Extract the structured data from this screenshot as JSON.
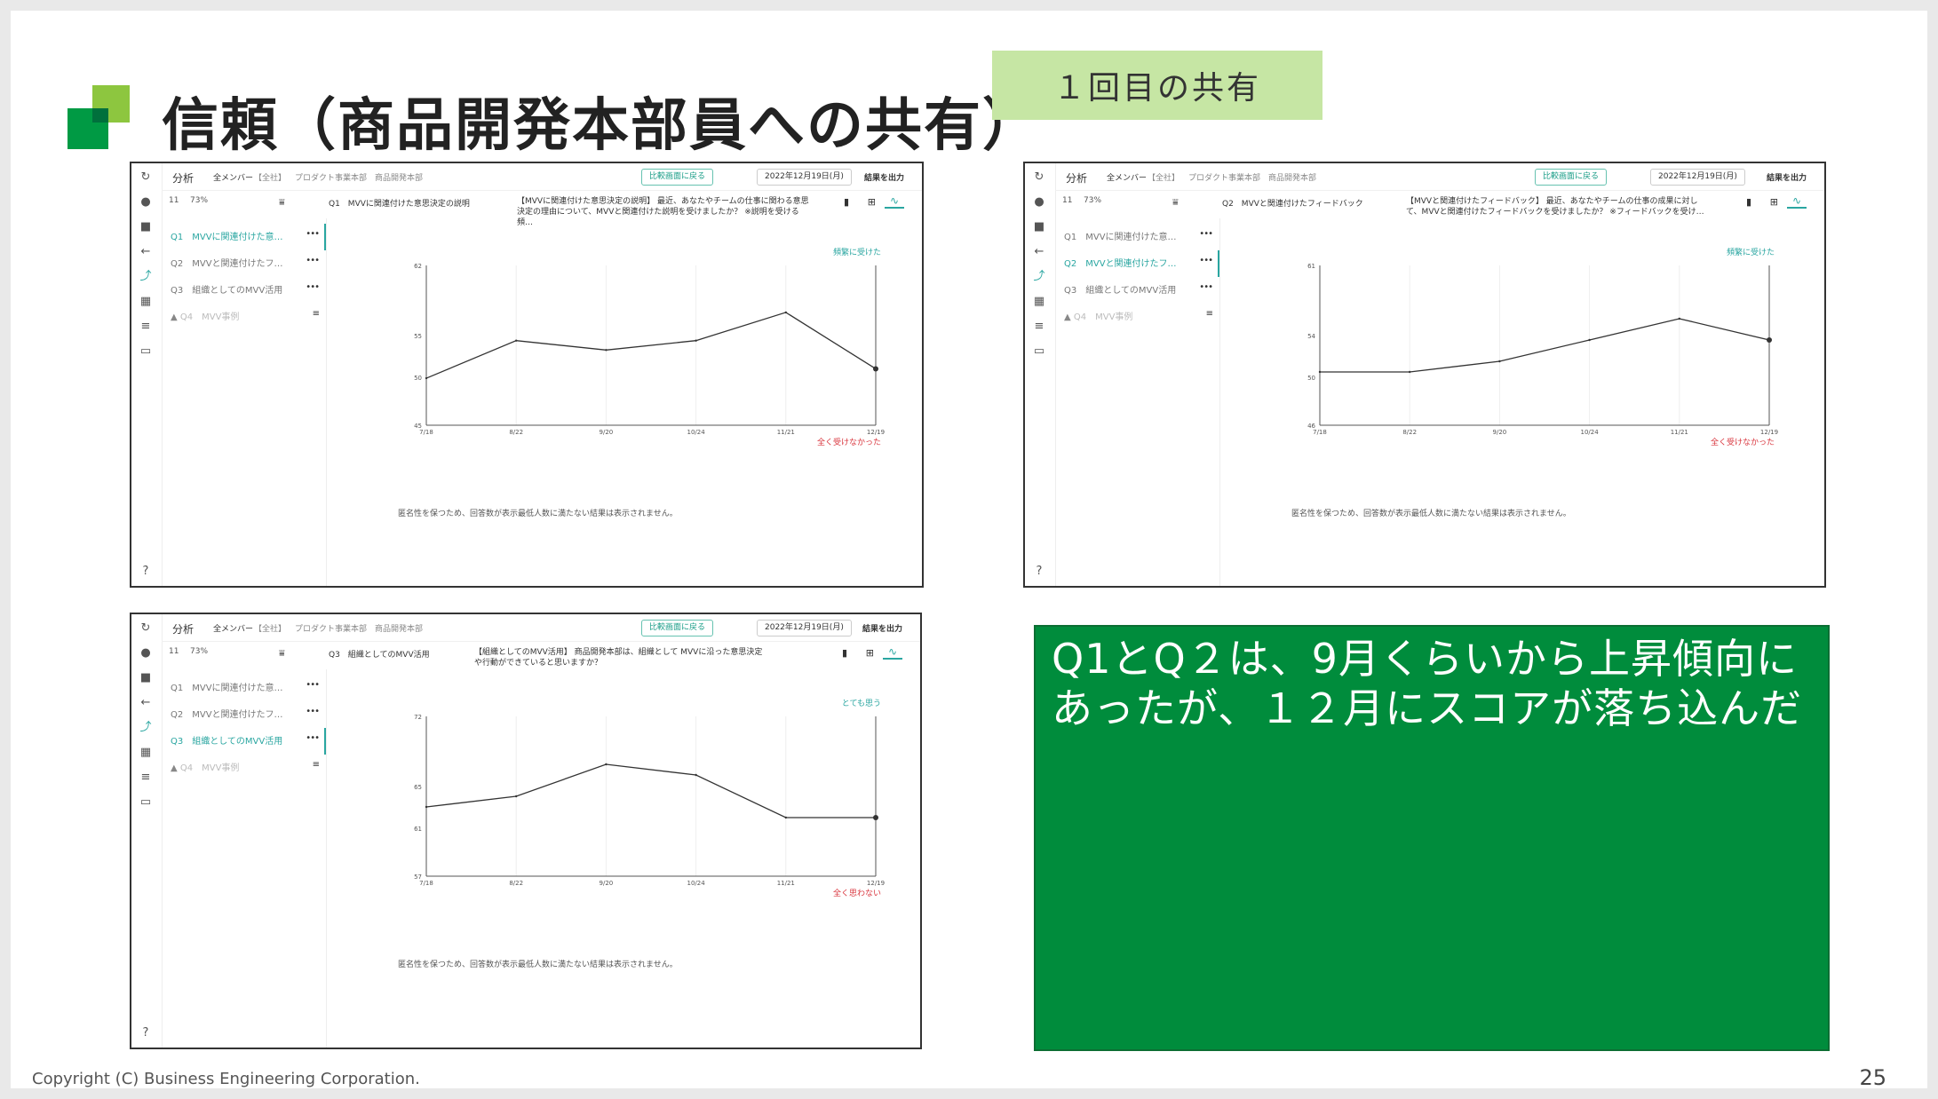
{
  "slide": {
    "title": "信頼（商品開発本部員への共有）",
    "callout": "１回目の共有",
    "summary_line1": "Q1とQ２は、9月くらいから上昇傾向に",
    "summary_line2": "あったが、１２月にスコアが落ち込んだ",
    "footer": "Copyright (C) Business Engineering Corporation.",
    "page_number": "25",
    "colors": {
      "logo_light": "#8dc63f",
      "logo_dark": "#009a44",
      "callout_bg": "#c6e6a4",
      "summary_bg": "#008c3c",
      "accent_teal": "#2aa6a1"
    }
  },
  "app": {
    "section": "分析",
    "members": "全メンバー",
    "breadcrumb_1": "【全社】",
    "breadcrumb_2": "プロダクト事業本部",
    "breadcrumb_3": "商品開発本部",
    "compare_button": "比較画面に戻る",
    "date_select": "2022年12月19日(月)",
    "export_button": "結果を出力",
    "respondents": "11",
    "rate": "73%",
    "anonymity_note": "匿名性を保つため、回答数が表示最低人数に満たない結果は表示されません。",
    "questions": [
      {
        "label": "Q1　MVVに関連付けた意…"
      },
      {
        "label": "Q2　MVVと関連付けたフ…"
      },
      {
        "label": "Q3　組織としてのMVV活用"
      },
      {
        "label": "Q4　MVV事例"
      }
    ],
    "icons": [
      "refresh-icon",
      "avatar-icon",
      "folder-icon",
      "back-arrow-icon",
      "trend-icon",
      "building-icon",
      "list-icon",
      "inbox-icon",
      "help-icon",
      "filter-icon",
      "bar-chart-icon",
      "tree-icon",
      "line-chart-icon",
      "cloud-download-icon",
      "warning-icon"
    ]
  },
  "panels": [
    {
      "q_head": "Q1　MVVに関連付けた意思決定の説明",
      "q_text": "【MVVに関連付けた意思決定の説明】 最近、あなたやチームの仕事に関わる意思決定の理由について、MVVと関連付けた説明を受けましたか？ ※説明を受ける頻…",
      "top_label": "頻繁に受けた",
      "bottom_label": "全く受けなかった"
    },
    {
      "q_head": "Q2　MVVと関連付けたフィードバック",
      "q_text": "【MVVと関連付けたフィードバック】 最近、あなたやチームの仕事の成果に対して、MVVと関連付けたフィードバックを受けましたか？ ※フィードバックを受け…",
      "top_label": "頻繁に受けた",
      "bottom_label": "全く受けなかった"
    },
    {
      "q_head": "Q3　組織としてのMVV活用",
      "q_text": "【組織としてのMVV活用】 商品開発本部は、組織として MVVに沿った意思決定や行動ができていると思いますか？",
      "top_label": "とても思う",
      "bottom_label": "全く思わない"
    }
  ],
  "chart_data": [
    {
      "type": "line",
      "x": [
        "7/18",
        "8/22",
        "9/20",
        "10/24",
        "11/21",
        "12/19"
      ],
      "y_ticks": [
        "62",
        "55",
        "50",
        "45"
      ],
      "ylim": [
        45,
        62
      ],
      "series": [
        {
          "values": [
            50,
            54,
            53,
            54,
            57,
            51
          ]
        }
      ]
    },
    {
      "type": "line",
      "x": [
        "7/18",
        "8/22",
        "9/20",
        "10/24",
        "11/21",
        "12/19"
      ],
      "y_ticks": [
        "61",
        "54",
        "50",
        "46"
      ],
      "ylim": [
        46,
        61
      ],
      "series": [
        {
          "values": [
            51,
            51,
            52,
            54,
            56,
            54
          ]
        }
      ]
    },
    {
      "type": "line",
      "x": [
        "7/18",
        "8/22",
        "9/20",
        "10/24",
        "11/21",
        "12/19"
      ],
      "y_ticks": [
        "72",
        "65",
        "61",
        "57"
      ],
      "ylim": [
        57,
        72
      ],
      "series": [
        {
          "values": [
            63.5,
            64.5,
            67.5,
            66.5,
            62.5,
            62.5
          ]
        }
      ]
    }
  ]
}
